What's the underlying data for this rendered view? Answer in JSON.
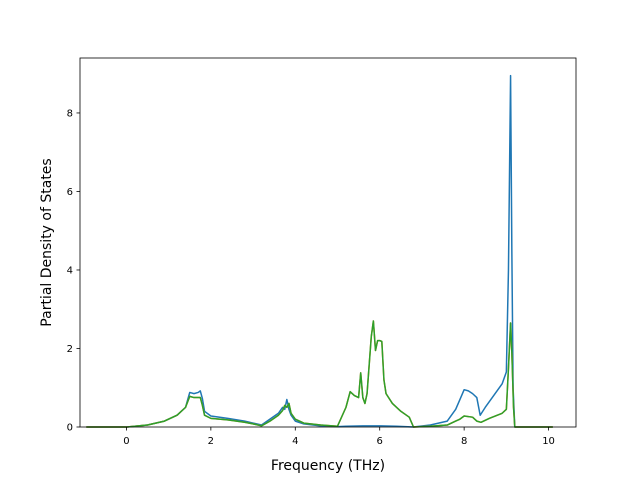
{
  "chart_data": {
    "type": "line",
    "title": "",
    "xlabel": "Frequency (THz)",
    "ylabel": "Partial Density of States",
    "xlim": [
      -1.1,
      10.65
    ],
    "ylim": [
      0,
      9.4
    ],
    "xticks": [
      0,
      2,
      4,
      6,
      8,
      10
    ],
    "yticks": [
      0,
      2,
      4,
      6,
      8
    ],
    "grid": false,
    "series": [
      {
        "color": "#1f77b4",
        "x": [
          -0.95,
          0.0,
          0.5,
          0.9,
          1.2,
          1.4,
          1.5,
          1.6,
          1.7,
          1.75,
          1.8,
          1.85,
          2.0,
          2.4,
          2.8,
          3.0,
          3.2,
          3.4,
          3.6,
          3.7,
          3.75,
          3.8,
          3.85,
          3.9,
          4.0,
          4.2,
          4.6,
          5.0,
          5.2,
          5.6,
          6.0,
          6.4,
          6.8,
          7.2,
          7.6,
          7.8,
          7.9,
          8.0,
          8.1,
          8.2,
          8.3,
          8.38,
          8.5,
          8.7,
          8.9,
          9.0,
          9.05,
          9.1,
          9.13,
          9.16,
          9.2,
          9.3,
          10.1
        ],
        "y": [
          0,
          0,
          0.05,
          0.15,
          0.3,
          0.5,
          0.88,
          0.85,
          0.88,
          0.92,
          0.72,
          0.4,
          0.28,
          0.22,
          0.15,
          0.1,
          0.05,
          0.2,
          0.35,
          0.5,
          0.45,
          0.7,
          0.45,
          0.3,
          0.15,
          0.08,
          0.03,
          0.01,
          0.02,
          0.03,
          0.03,
          0.02,
          0.0,
          0.05,
          0.15,
          0.45,
          0.7,
          0.95,
          0.92,
          0.85,
          0.75,
          0.3,
          0.5,
          0.8,
          1.1,
          1.4,
          4.0,
          8.95,
          4.5,
          1.0,
          0.0,
          0.0,
          0.0
        ]
      },
      {
        "color": "#ff7f0e",
        "x": [
          -0.95,
          0.0,
          0.5,
          0.9,
          1.2,
          1.4,
          1.5,
          1.6,
          1.75,
          1.8,
          1.85,
          2.0,
          2.4,
          2.8,
          3.0,
          3.2,
          3.4,
          3.6,
          3.7,
          3.75,
          3.8,
          3.85,
          3.9,
          4.0,
          4.2,
          4.6,
          5.0,
          5.2,
          5.3,
          5.4,
          5.5,
          5.55,
          5.6,
          5.65,
          5.7,
          5.8,
          5.85,
          5.9,
          5.95,
          6.0,
          6.05,
          6.1,
          6.15,
          6.3,
          6.5,
          6.7,
          6.8,
          7.2,
          7.6,
          7.8,
          7.9,
          8.0,
          8.2,
          8.3,
          8.4,
          8.6,
          8.9,
          9.0,
          9.05,
          9.1,
          9.13,
          9.17,
          9.2,
          9.3,
          10.1
        ],
        "y": [
          0,
          0,
          0.05,
          0.15,
          0.3,
          0.5,
          0.78,
          0.75,
          0.75,
          0.55,
          0.3,
          0.22,
          0.18,
          0.12,
          0.08,
          0.03,
          0.15,
          0.3,
          0.42,
          0.55,
          0.5,
          0.6,
          0.35,
          0.2,
          0.1,
          0.05,
          0.02,
          0.5,
          0.9,
          0.8,
          0.75,
          1.38,
          0.75,
          0.6,
          0.85,
          2.3,
          2.7,
          1.95,
          2.2,
          2.2,
          2.18,
          1.2,
          0.85,
          0.6,
          0.4,
          0.25,
          0.0,
          0.02,
          0.05,
          0.15,
          0.2,
          0.28,
          0.25,
          0.15,
          0.12,
          0.22,
          0.35,
          0.45,
          1.5,
          2.65,
          1.9,
          0.5,
          0.0,
          0.0,
          0.0
        ]
      },
      {
        "color": "#2ca02c",
        "x": [
          -0.95,
          0.0,
          0.5,
          0.9,
          1.2,
          1.4,
          1.5,
          1.6,
          1.75,
          1.8,
          1.85,
          2.0,
          2.4,
          2.8,
          3.0,
          3.2,
          3.4,
          3.6,
          3.7,
          3.75,
          3.8,
          3.85,
          3.9,
          4.0,
          4.2,
          4.6,
          5.0,
          5.2,
          5.3,
          5.4,
          5.5,
          5.55,
          5.6,
          5.65,
          5.7,
          5.8,
          5.85,
          5.9,
          5.95,
          6.0,
          6.05,
          6.1,
          6.15,
          6.3,
          6.5,
          6.7,
          6.8,
          7.2,
          7.6,
          7.8,
          7.9,
          8.0,
          8.2,
          8.3,
          8.4,
          8.6,
          8.9,
          9.0,
          9.05,
          9.1,
          9.13,
          9.17,
          9.2,
          9.3,
          10.1
        ],
        "y": [
          0,
          0,
          0.05,
          0.15,
          0.3,
          0.5,
          0.78,
          0.75,
          0.75,
          0.55,
          0.3,
          0.22,
          0.18,
          0.12,
          0.08,
          0.03,
          0.15,
          0.3,
          0.42,
          0.55,
          0.5,
          0.6,
          0.35,
          0.2,
          0.1,
          0.05,
          0.02,
          0.5,
          0.9,
          0.8,
          0.75,
          1.38,
          0.75,
          0.6,
          0.85,
          2.3,
          2.7,
          1.95,
          2.2,
          2.2,
          2.18,
          1.2,
          0.85,
          0.6,
          0.4,
          0.25,
          0.0,
          0.02,
          0.05,
          0.15,
          0.2,
          0.28,
          0.25,
          0.15,
          0.12,
          0.22,
          0.35,
          0.45,
          1.5,
          2.65,
          1.9,
          0.5,
          0.0,
          0.0,
          0.0
        ]
      }
    ]
  }
}
